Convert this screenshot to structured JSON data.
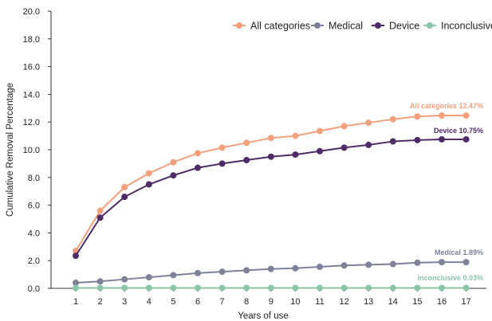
{
  "chart_data": {
    "type": "line",
    "xlabel": "Years of use",
    "ylabel": "Cumulative Removal Percentage",
    "x": [
      1,
      2,
      3,
      4,
      5,
      6,
      7,
      8,
      9,
      10,
      11,
      12,
      13,
      14,
      15,
      16,
      17
    ],
    "ylim": [
      0,
      20
    ],
    "yticks": [
      "0.0",
      "2.0",
      "4.0",
      "6.0",
      "8.0",
      "10.0",
      "12.0",
      "14.0",
      "16.0",
      "18.0",
      "20.0"
    ],
    "grid": false,
    "legend_position": "top-right",
    "series": [
      {
        "name": "All categories",
        "color": "#F4A07C",
        "values": [
          2.7,
          5.6,
          7.3,
          8.3,
          9.1,
          9.75,
          10.15,
          10.5,
          10.85,
          11.0,
          11.35,
          11.7,
          11.95,
          12.2,
          12.4,
          12.47,
          12.47
        ],
        "end_label": "All categories 12.47%"
      },
      {
        "name": "Medical",
        "color": "#7E8299",
        "values": [
          0.4,
          0.5,
          0.65,
          0.8,
          0.95,
          1.1,
          1.2,
          1.3,
          1.4,
          1.45,
          1.55,
          1.65,
          1.7,
          1.75,
          1.85,
          1.89,
          1.89
        ],
        "end_label": "Medical 1.89%"
      },
      {
        "name": "Device",
        "color": "#4E2C66",
        "values": [
          2.35,
          5.1,
          6.6,
          7.5,
          8.15,
          8.7,
          9.0,
          9.25,
          9.5,
          9.65,
          9.9,
          10.15,
          10.35,
          10.6,
          10.7,
          10.75,
          10.75
        ],
        "end_label": "Device 10.75%"
      },
      {
        "name": "Inconclusive",
        "color": "#8CC4AA",
        "values": [
          0.03,
          0.03,
          0.03,
          0.03,
          0.03,
          0.03,
          0.03,
          0.03,
          0.03,
          0.03,
          0.03,
          0.03,
          0.03,
          0.03,
          0.03,
          0.03,
          0.03
        ],
        "end_label": "Inconclusive 0.03%"
      }
    ]
  }
}
